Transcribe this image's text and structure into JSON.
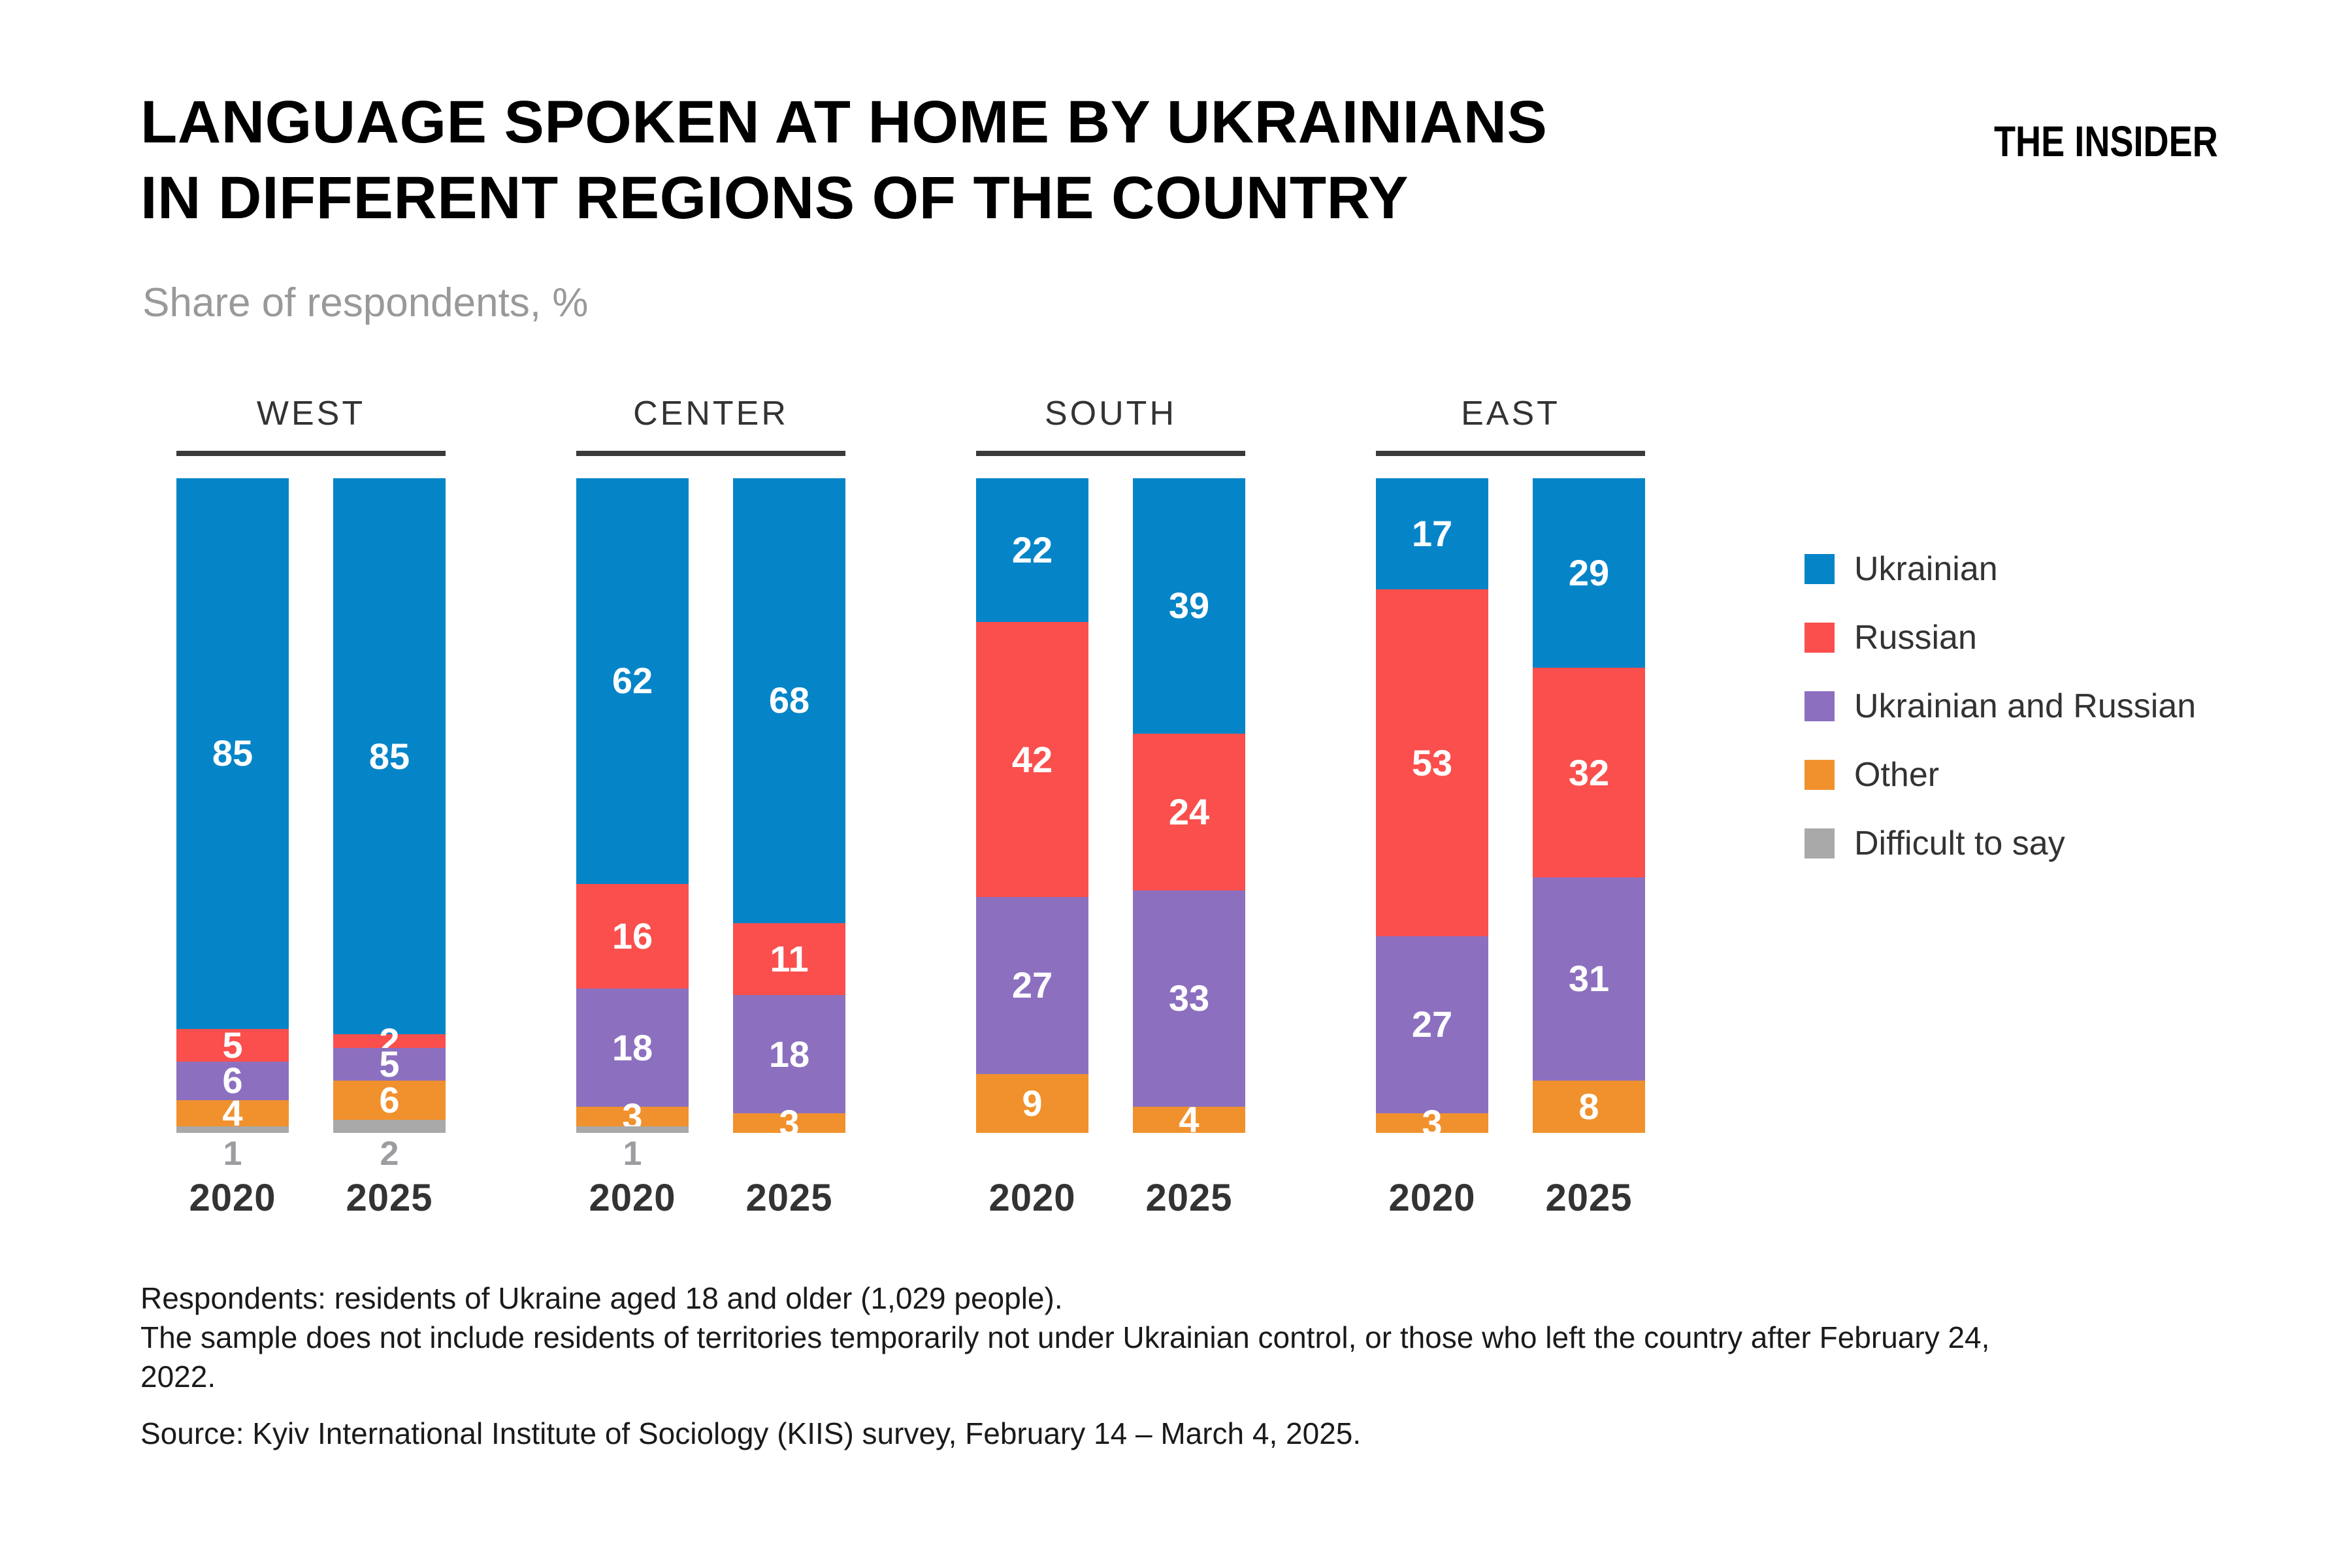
{
  "header": {
    "title_line1": "LANGUAGE SPOKEN AT HOME BY UKRAINIANS",
    "title_line2": "IN DIFFERENT REGIONS OF THE COUNTRY",
    "subtitle": "Share of respondents, %",
    "brand": "THE INSIDER"
  },
  "legend": {
    "items": [
      {
        "label": "Ukrainian",
        "color": "#0585C8"
      },
      {
        "label": "Russian",
        "color": "#FA4F4D"
      },
      {
        "label": "Ukrainian and Russian",
        "color": "#8C70BF"
      },
      {
        "label": "Other",
        "color": "#F1912D"
      },
      {
        "label": "Difficult to say",
        "color": "#A9A9A9"
      }
    ]
  },
  "chart_data": {
    "type": "bar",
    "stacked": true,
    "units": "%",
    "value_range": [
      0,
      100
    ],
    "grid": false,
    "legend_position": "right",
    "categories": [
      "Ukrainian",
      "Russian",
      "Ukrainian and Russian",
      "Other",
      "Difficult to say"
    ],
    "series_colors": [
      "#0585C8",
      "#FA4F4D",
      "#8C70BF",
      "#F1912D",
      "#A9A9A9"
    ],
    "outside_label_category": "Difficult to say",
    "outside_label_color": "#9c9ca1",
    "groups": [
      {
        "region": "WEST",
        "bars": [
          {
            "year": "2020",
            "values": [
              85,
              5,
              6,
              4,
              1
            ]
          },
          {
            "year": "2025",
            "values": [
              85,
              2,
              5,
              6,
              2
            ]
          }
        ]
      },
      {
        "region": "CENTER",
        "bars": [
          {
            "year": "2020",
            "values": [
              62,
              16,
              18,
              3,
              1
            ]
          },
          {
            "year": "2025",
            "values": [
              68,
              11,
              18,
              3,
              0
            ]
          }
        ]
      },
      {
        "region": "SOUTH",
        "bars": [
          {
            "year": "2020",
            "values": [
              22,
              42,
              27,
              9,
              0
            ]
          },
          {
            "year": "2025",
            "values": [
              39,
              24,
              33,
              4,
              0
            ]
          }
        ]
      },
      {
        "region": "EAST",
        "bars": [
          {
            "year": "2020",
            "values": [
              17,
              53,
              27,
              3,
              0
            ]
          },
          {
            "year": "2025",
            "values": [
              29,
              32,
              31,
              8,
              0
            ]
          }
        ]
      }
    ]
  },
  "footnotes": {
    "line1": "Respondents: residents of Ukraine aged 18 and older (1,029 people).",
    "line2": "The sample does not include residents of territories temporarily not under Ukrainian control, or those who left the country after February 24, 2022.",
    "source": "Source: Kyiv International Institute of Sociology (KIIS) survey, February 14 – March 4, 2025."
  }
}
